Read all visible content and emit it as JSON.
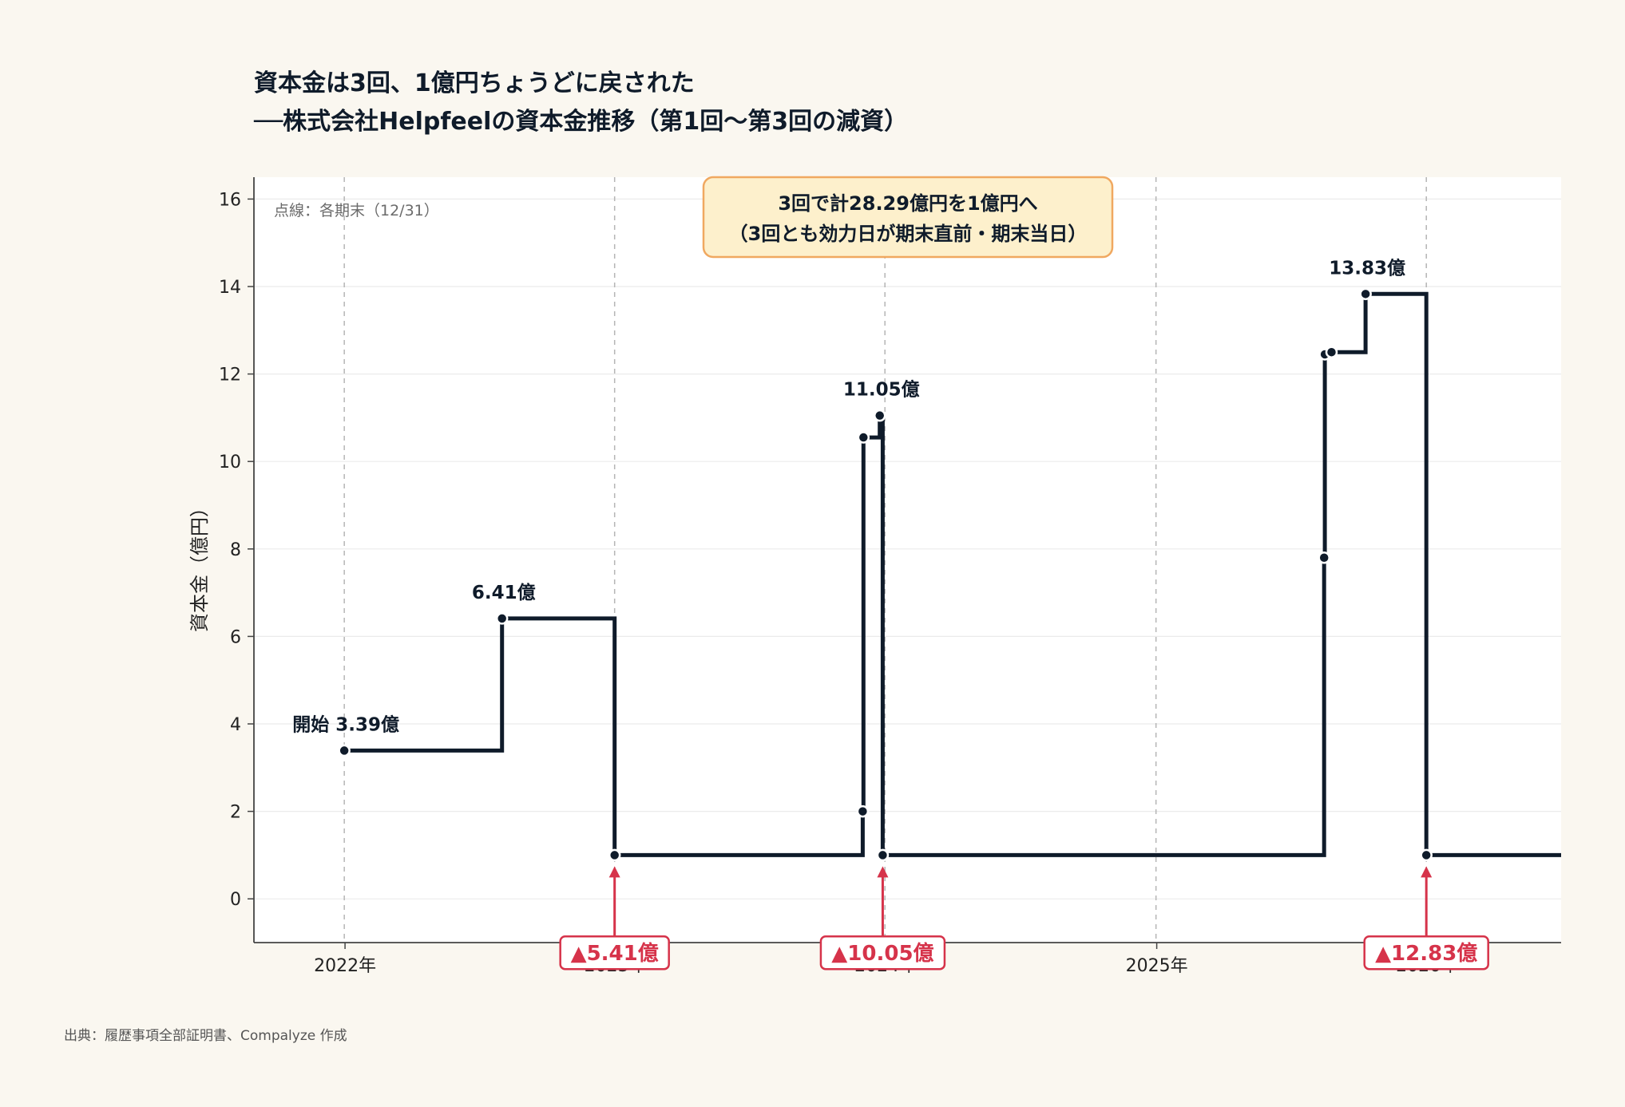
{
  "title": {
    "line1": "資本金は3回、1億円ちょうどに戻された",
    "line2": "──株式会社Helpfeelの資本金推移（第1回〜第3回の減資）"
  },
  "note": "点線：各期末（12/31）",
  "annotation_box": {
    "line1": "3回で計28.29億円を1億円へ",
    "line2": "（3回とも効力日が期末直前・期末当日）"
  },
  "source": "出典：履歴事項全部証明書、Compalyze 作成",
  "colors": {
    "line": "#0f1b2a",
    "reduction": "#d6334a",
    "annotation_fill": "#fdf0cc",
    "annotation_border": "#f0a860",
    "background": "#faf7f0"
  },
  "chart_data": {
    "type": "line",
    "step": true,
    "ylabel": "資本金（億円）",
    "ylim": [
      -1,
      16.5
    ],
    "yticks": [
      0,
      2,
      4,
      6,
      8,
      10,
      12,
      14,
      16
    ],
    "xticks": [
      {
        "date": "2022-01-01",
        "label": "2022年"
      },
      {
        "date": "2023-01-01",
        "label": "2023年"
      },
      {
        "date": "2024-01-01",
        "label": "2024年"
      },
      {
        "date": "2025-01-01",
        "label": "2025年"
      },
      {
        "date": "2026-01-01",
        "label": "2026年"
      }
    ],
    "xlim": [
      "2021-08-31",
      "2026-07-01"
    ],
    "period_ends": [
      "2021-12-31",
      "2022-12-31",
      "2023-12-31",
      "2024-12-31",
      "2025-12-31"
    ],
    "grid": "horizontal",
    "series": [
      {
        "points": [
          {
            "date": "2021-12-31",
            "value": 3.39
          },
          {
            "date": "2022-08-01",
            "value": 6.41
          },
          {
            "date": "2022-12-31",
            "value": 1.0
          },
          {
            "date": "2023-12-01",
            "value": 2.0
          },
          {
            "date": "2023-12-02",
            "value": 10.55
          },
          {
            "date": "2023-12-24",
            "value": 11.05
          },
          {
            "date": "2023-12-28",
            "value": 1.0
          },
          {
            "date": "2025-08-15",
            "value": 7.8
          },
          {
            "date": "2025-08-16",
            "value": 12.45
          },
          {
            "date": "2025-08-25",
            "value": 12.5
          },
          {
            "date": "2025-10-10",
            "value": 13.83
          },
          {
            "date": "2025-12-31",
            "value": 1.0
          }
        ],
        "end_date": "2026-07-01"
      }
    ],
    "value_labels": [
      {
        "date": "2021-12-31",
        "value": 3.39,
        "text": "開始 3.39億"
      },
      {
        "date": "2022-08-01",
        "value": 6.41,
        "text": "6.41億"
      },
      {
        "date": "2023-12-24",
        "value": 11.05,
        "text": "11.05億"
      },
      {
        "date": "2025-10-10",
        "value": 13.83,
        "text": "13.83億"
      }
    ],
    "reductions": [
      {
        "date": "2022-12-31",
        "text": "▲5.41億"
      },
      {
        "date": "2023-12-28",
        "text": "▲10.05億"
      },
      {
        "date": "2025-12-31",
        "text": "▲12.83億"
      }
    ]
  }
}
